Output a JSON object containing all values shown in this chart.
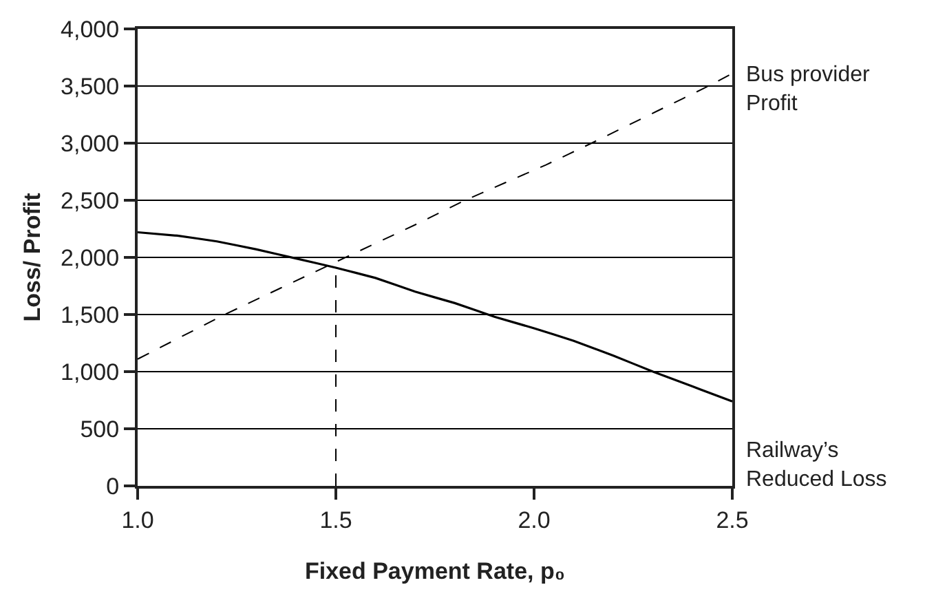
{
  "chart_data": {
    "type": "line",
    "xlabel": "Fixed Payment Rate, p₀",
    "ylabel": "Loss/ Profit",
    "xlim": [
      1.0,
      2.5
    ],
    "xticks": [
      {
        "value": 1.0,
        "label": "1.0"
      },
      {
        "value": 1.5,
        "label": "1.5"
      },
      {
        "value": 2.0,
        "label": "2.0"
      },
      {
        "value": 2.5,
        "label": "2.5"
      }
    ],
    "ylim": [
      0,
      4000
    ],
    "yticks": [
      {
        "value": 0,
        "label": "0"
      },
      {
        "value": 500,
        "label": "500"
      },
      {
        "value": 1000,
        "label": "1,000"
      },
      {
        "value": 1500,
        "label": "1,500"
      },
      {
        "value": 2000,
        "label": "2,000"
      },
      {
        "value": 2500,
        "label": "2,500"
      },
      {
        "value": 3000,
        "label": "3,000"
      },
      {
        "value": 3500,
        "label": "3,500"
      },
      {
        "value": 4000,
        "label": "4,000"
      }
    ],
    "grid": "y",
    "legend": false,
    "marker": "none",
    "series": [
      {
        "name": "Bus provider Profit",
        "color": "#000000",
        "line_style": "dashed",
        "x": [
          1.0,
          1.22,
          1.5,
          1.715,
          1.826,
          2.03,
          2.145,
          2.31,
          2.44,
          2.5
        ],
        "values": [
          1110,
          1500,
          1960,
          2310,
          2500,
          2810,
          3000,
          3280,
          3500,
          3610
        ]
      },
      {
        "name": "Railway’s Reduced Loss",
        "color": "#000000",
        "line_style": "solid",
        "x": [
          1.0,
          1.1,
          1.2,
          1.3,
          1.4,
          1.5,
          1.6,
          1.7,
          1.8,
          1.9,
          2.0,
          2.1,
          2.2,
          2.3,
          2.4,
          2.5
        ],
        "values": [
          2220,
          2190,
          2140,
          2070,
          1990,
          1910,
          1820,
          1700,
          1600,
          1480,
          1380,
          1270,
          1140,
          1000,
          870,
          740
        ]
      }
    ],
    "ref_lines": [
      {
        "axis": "x",
        "value": 1.5,
        "line_style": "dashed",
        "color": "#000000"
      }
    ]
  }
}
